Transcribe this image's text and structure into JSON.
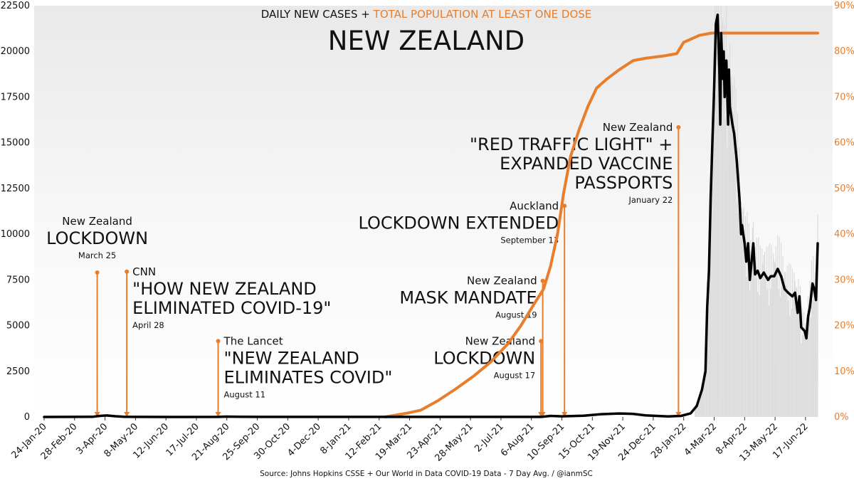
{
  "chart_data": {
    "type": "line",
    "title": "NEW ZEALAND",
    "subtitle_part1": "DAILY NEW CASES + ",
    "subtitle_part2": "TOTAL POPULATION AT LEAST ONE DOSE",
    "source": "Source: Johns Hopkins CSSE + Our World in Data COVID-19 Data - 7 Day Avg. / @ianmSC",
    "x_start": "2020-01-24",
    "x_end": "2022-07-10",
    "x_tick_labels": [
      "24-Jan-20",
      "28-Feb-20",
      "3-Apr-20",
      "8-May-20",
      "12-Jun-20",
      "17-Jul-20",
      "21-Aug-20",
      "25-Sep-20",
      "30-Oct-20",
      "4-Dec-20",
      "8-Jan-21",
      "12-Feb-21",
      "19-Mar-21",
      "23-Apr-21",
      "28-May-21",
      "2-Jul-21",
      "6-Aug-21",
      "10-Sep-21",
      "15-Oct-21",
      "19-Nov-21",
      "24-Dec-21",
      "28-Jan-22",
      "4-Mar-22",
      "8-Apr-22",
      "13-May-22",
      "17-Jun-22"
    ],
    "y_left": {
      "ticks": [
        0,
        2500,
        5000,
        7500,
        10000,
        12500,
        15000,
        17500,
        20000,
        22500
      ],
      "ylim": [
        0,
        22500
      ]
    },
    "y_right": {
      "ticks": [
        "0%",
        "10%",
        "20%",
        "30%",
        "40%",
        "50%",
        "60%",
        "70%",
        "80%",
        "90%"
      ],
      "ylim": [
        0,
        90
      ]
    },
    "colors": {
      "cases": "#000000",
      "vaccination": "#e87d2c",
      "bars": "#dcdcdc"
    },
    "series": [
      {
        "name": "DAILY NEW CASES",
        "axis": "left",
        "points": [
          [
            "2020-01-24",
            0
          ],
          [
            "2020-03-20",
            10
          ],
          [
            "2020-03-28",
            60
          ],
          [
            "2020-04-05",
            80
          ],
          [
            "2020-04-15",
            40
          ],
          [
            "2020-04-25",
            8
          ],
          [
            "2020-05-10",
            2
          ],
          [
            "2020-06-15",
            0
          ],
          [
            "2020-08-11",
            5
          ],
          [
            "2020-08-20",
            20
          ],
          [
            "2020-09-05",
            8
          ],
          [
            "2020-10-01",
            2
          ],
          [
            "2021-02-15",
            2
          ],
          [
            "2021-08-17",
            2
          ],
          [
            "2021-08-28",
            60
          ],
          [
            "2021-09-10",
            35
          ],
          [
            "2021-10-05",
            70
          ],
          [
            "2021-10-25",
            150
          ],
          [
            "2021-11-15",
            190
          ],
          [
            "2021-11-30",
            170
          ],
          [
            "2021-12-15",
            90
          ],
          [
            "2022-01-10",
            30
          ],
          [
            "2022-01-25",
            60
          ],
          [
            "2022-02-05",
            200
          ],
          [
            "2022-02-12",
            600
          ],
          [
            "2022-02-18",
            1500
          ],
          [
            "2022-02-22",
            2500
          ],
          [
            "2022-02-24",
            6000
          ],
          [
            "2022-02-26",
            8000
          ],
          [
            "2022-02-28",
            12000
          ],
          [
            "2022-03-02",
            15000
          ],
          [
            "2022-03-04",
            18000
          ],
          [
            "2022-03-06",
            21500
          ],
          [
            "2022-03-08",
            22000
          ],
          [
            "2022-03-10",
            19000
          ],
          [
            "2022-03-11",
            16000
          ],
          [
            "2022-03-12",
            21000
          ],
          [
            "2022-03-14",
            18500
          ],
          [
            "2022-03-15",
            20000
          ],
          [
            "2022-03-16",
            17500
          ],
          [
            "2022-03-18",
            19500
          ],
          [
            "2022-03-20",
            16000
          ],
          [
            "2022-03-21",
            19000
          ],
          [
            "2022-03-22",
            17000
          ],
          [
            "2022-03-25",
            16000
          ],
          [
            "2022-03-27",
            15500
          ],
          [
            "2022-03-30",
            14000
          ],
          [
            "2022-04-02",
            12000
          ],
          [
            "2022-04-04",
            10000
          ],
          [
            "2022-04-05",
            10500
          ],
          [
            "2022-04-08",
            9500
          ],
          [
            "2022-04-10",
            8500
          ],
          [
            "2022-04-12",
            9500
          ],
          [
            "2022-04-14",
            7500
          ],
          [
            "2022-04-16",
            8500
          ],
          [
            "2022-04-18",
            9500
          ],
          [
            "2022-04-20",
            7800
          ],
          [
            "2022-04-23",
            8000
          ],
          [
            "2022-04-26",
            7600
          ],
          [
            "2022-04-30",
            7900
          ],
          [
            "2022-05-05",
            7500
          ],
          [
            "2022-05-08",
            7700
          ],
          [
            "2022-05-12",
            7700
          ],
          [
            "2022-05-16",
            8100
          ],
          [
            "2022-05-20",
            7700
          ],
          [
            "2022-05-24",
            7000
          ],
          [
            "2022-05-28",
            6800
          ],
          [
            "2022-06-02",
            6600
          ],
          [
            "2022-06-05",
            6800
          ],
          [
            "2022-06-08",
            5700
          ],
          [
            "2022-06-10",
            6600
          ],
          [
            "2022-06-12",
            4900
          ],
          [
            "2022-06-16",
            4700
          ],
          [
            "2022-06-18",
            4300
          ],
          [
            "2022-06-20",
            5500
          ],
          [
            "2022-06-22",
            6000
          ],
          [
            "2022-06-25",
            7300
          ],
          [
            "2022-06-27",
            7000
          ],
          [
            "2022-06-29",
            6400
          ],
          [
            "2022-07-01",
            9500
          ]
        ]
      },
      {
        "name": "TOTAL POPULATION AT LEAST ONE DOSE",
        "axis": "right",
        "points": [
          [
            "2021-02-19",
            0
          ],
          [
            "2021-03-15",
            0.8
          ],
          [
            "2021-04-01",
            1.5
          ],
          [
            "2021-04-20",
            3.5
          ],
          [
            "2021-05-10",
            6
          ],
          [
            "2021-06-01",
            9
          ],
          [
            "2021-06-20",
            12
          ],
          [
            "2021-07-10",
            16
          ],
          [
            "2021-07-25",
            20
          ],
          [
            "2021-08-10",
            25
          ],
          [
            "2021-08-20",
            28
          ],
          [
            "2021-08-28",
            33
          ],
          [
            "2021-09-05",
            40
          ],
          [
            "2021-09-12",
            49
          ],
          [
            "2021-09-20",
            57
          ],
          [
            "2021-09-30",
            63
          ],
          [
            "2021-10-10",
            68
          ],
          [
            "2021-10-20",
            72
          ],
          [
            "2021-11-01",
            74
          ],
          [
            "2021-11-15",
            76
          ],
          [
            "2021-12-01",
            78
          ],
          [
            "2021-12-15",
            78.5
          ],
          [
            "2022-01-05",
            79
          ],
          [
            "2022-01-20",
            79.5
          ],
          [
            "2022-01-28",
            82
          ],
          [
            "2022-02-15",
            83.5
          ],
          [
            "2022-03-01",
            84
          ],
          [
            "2022-03-15",
            84
          ],
          [
            "2022-04-01",
            84
          ],
          [
            "2022-07-01",
            84
          ]
        ]
      }
    ],
    "annotations": [
      {
        "date": "2020-03-25",
        "value": 7900,
        "anchor": "middle",
        "lines": [
          {
            "t": "New Zealand",
            "s": "m"
          },
          {
            "t": "LOCKDOWN",
            "s": "l"
          },
          {
            "t": "March 25",
            "s": "d"
          }
        ]
      },
      {
        "date": "2020-04-28",
        "value": 7950,
        "anchor": "start",
        "lines": [
          {
            "t": "CNN",
            "s": "m"
          },
          {
            "t": "\"HOW NEW ZEALAND",
            "s": "l"
          },
          {
            "t": "ELIMINATED COVID-19\"",
            "s": "l"
          },
          {
            "t": "April 28",
            "s": "d"
          }
        ]
      },
      {
        "date": "2020-08-11",
        "value": 4150,
        "anchor": "start",
        "lines": [
          {
            "t": "The Lancet",
            "s": "m"
          },
          {
            "t": "\"NEW ZEALAND",
            "s": "l"
          },
          {
            "t": "ELIMINATES COVID\"",
            "s": "l"
          },
          {
            "t": "August 11",
            "s": "d"
          }
        ]
      },
      {
        "date": "2021-08-17",
        "value": 4150,
        "anchor": "end",
        "lines": [
          {
            "t": "New Zealand",
            "s": "m"
          },
          {
            "t": "LOCKDOWN",
            "s": "l"
          },
          {
            "t": "August 17",
            "s": "d"
          }
        ]
      },
      {
        "date": "2021-08-19",
        "value": 7450,
        "anchor": "end",
        "lines": [
          {
            "t": "New Zealand",
            "s": "m"
          },
          {
            "t": "MASK MANDATE",
            "s": "l"
          },
          {
            "t": "August 19",
            "s": "d"
          }
        ]
      },
      {
        "date": "2021-09-13",
        "value": 11550,
        "anchor": "end",
        "lines": [
          {
            "t": "Auckland",
            "s": "m"
          },
          {
            "t": "LOCKDOWN EXTENDED",
            "s": "l"
          },
          {
            "t": "September 13",
            "s": "d"
          }
        ]
      },
      {
        "date": "2022-01-22",
        "value": 15850,
        "anchor": "end",
        "lines": [
          {
            "t": "New Zealand",
            "s": "m"
          },
          {
            "t": "\"RED TRAFFIC LIGHT\" +",
            "s": "l"
          },
          {
            "t": "EXPANDED VACCINE",
            "s": "l"
          },
          {
            "t": "PASSPORTS",
            "s": "l"
          },
          {
            "t": "January 22",
            "s": "d"
          }
        ]
      }
    ]
  }
}
